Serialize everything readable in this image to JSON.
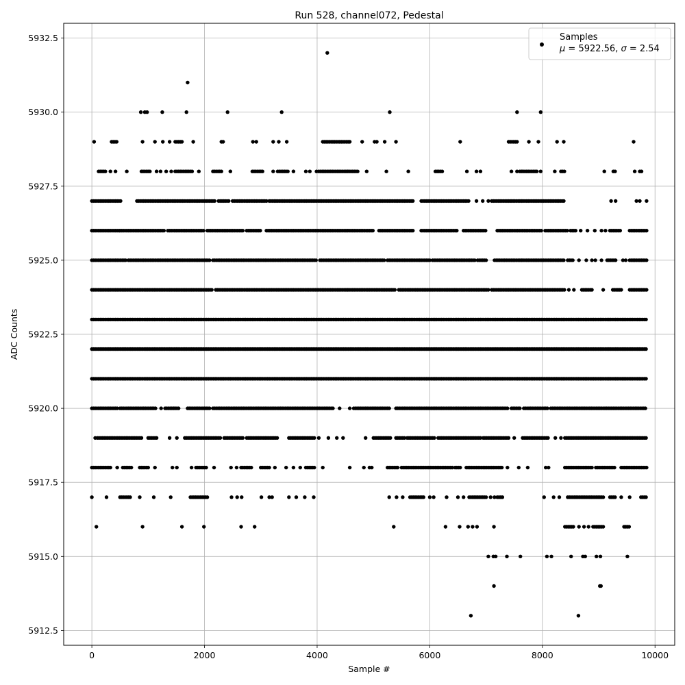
{
  "chart_data": {
    "type": "scatter",
    "title": "Run 528, channel072, Pedestal",
    "xlabel": "Sample #",
    "ylabel": "ADC Counts",
    "xlim": [
      -500,
      10350
    ],
    "ylim": [
      5912,
      5933
    ],
    "xticks": [
      0,
      2000,
      4000,
      6000,
      8000,
      10000
    ],
    "yticks": [
      5912.5,
      5915.0,
      5917.5,
      5920.0,
      5922.5,
      5925.0,
      5927.5,
      5930.0,
      5932.5
    ],
    "xtick_labels": [
      "0",
      "2000",
      "4000",
      "6000",
      "8000",
      "10000"
    ],
    "ytick_labels": [
      "5912.5",
      "5915.0",
      "5917.5",
      "5920.0",
      "5922.5",
      "5925.0",
      "5927.5",
      "5930.0",
      "5932.5"
    ],
    "grid": true,
    "legend": {
      "placement": "top-right",
      "series_label": "Samples",
      "mu_symbol": "μ",
      "mu_text": " = 5922.56, ",
      "sigma_symbol": "σ",
      "sigma_text": " = 2.54"
    },
    "series": [
      {
        "name": "Samples",
        "color": "#000000",
        "marker": "circle",
        "x_range": [
          0,
          9850
        ],
        "levels": [
          {
            "y": 5932,
            "ranges": [],
            "points": [
              4180
            ]
          },
          {
            "y": 5931,
            "ranges": [],
            "points": [
              1700
            ]
          },
          {
            "y": 5930,
            "ranges": [],
            "points": [
              870,
              940,
              980,
              1250,
              1680,
              2410,
              3370,
              5290,
              7550,
              7970
            ]
          },
          {
            "y": 5929,
            "ranges": [
              [
                350,
                450
              ],
              [
                1480,
                1620
              ],
              [
                4100,
                4600
              ],
              [
                7400,
                7560
              ]
            ],
            "points": [
              40,
              900,
              1120,
              1260,
              1380,
              1800,
              2300,
              2330,
              2860,
              2920,
              3220,
              3320,
              3460,
              4800,
              5020,
              5060,
              5200,
              5400,
              6540,
              7760,
              7930,
              8260,
              8380,
              9620
            ]
          },
          {
            "y": 5928,
            "ranges": [
              [
                120,
                250
              ],
              [
                880,
                1050
              ],
              [
                1480,
                1780
              ],
              [
                2150,
                2300
              ],
              [
                2850,
                3050
              ],
              [
                3300,
                3500
              ],
              [
                4030,
                4730
              ],
              [
                6100,
                6220
              ],
              [
                7600,
                7900
              ],
              [
                8330,
                8400
              ]
            ],
            "points": [
              330,
              420,
              620,
              1150,
              1220,
              1320,
              1410,
              1900,
              2460,
              3220,
              3580,
              3800,
              3870,
              3990,
              4880,
              5230,
              5620,
              6660,
              6830,
              6900,
              7450,
              7550,
              7970,
              8220,
              9100,
              9260,
              9290,
              9640,
              9730,
              9760
            ]
          },
          {
            "y": 5927,
            "ranges": [
              [
                0,
                520
              ],
              [
                800,
                2200
              ],
              [
                2250,
                2450
              ],
              [
                2500,
                3100
              ],
              [
                3150,
                5700
              ],
              [
                5850,
                6700
              ],
              [
                7100,
                7450
              ],
              [
                7450,
                8400
              ]
            ],
            "points": [
              6830,
              6940,
              7040,
              9220,
              9300,
              9670,
              9730,
              9850
            ]
          },
          {
            "y": 5926,
            "ranges": [
              [
                0,
                480
              ],
              [
                500,
                1300
              ],
              [
                1350,
                2000
              ],
              [
                2050,
                2700
              ],
              [
                2750,
                3000
              ],
              [
                3100,
                5000
              ],
              [
                5100,
                5700
              ],
              [
                5850,
                6500
              ],
              [
                6600,
                7000
              ],
              [
                7200,
                8000
              ],
              [
                8050,
                8450
              ],
              [
                8500,
                8600
              ],
              [
                9200,
                9400
              ],
              [
                9550,
                9850
              ]
            ],
            "points": [
              8680,
              8800,
              8930,
              9050,
              9120
            ]
          },
          {
            "y": 5925,
            "ranges": [
              [
                0,
                600
              ],
              [
                650,
                2100
              ],
              [
                2150,
                4000
              ],
              [
                4050,
                5200
              ],
              [
                5250,
                6000
              ],
              [
                6050,
                6800
              ],
              [
                6850,
                7000
              ],
              [
                7150,
                8400
              ],
              [
                8450,
                8550
              ],
              [
                9150,
                9300
              ],
              [
                9550,
                9850
              ]
            ],
            "points": [
              8650,
              8780,
              8880,
              8940,
              9050,
              9430,
              9480
            ]
          },
          {
            "y": 5924,
            "ranges": [
              [
                0,
                2150
              ],
              [
                2200,
                5400
              ],
              [
                5450,
                7050
              ],
              [
                7100,
                8400
              ],
              [
                8700,
                8900
              ],
              [
                9250,
                9400
              ],
              [
                9550,
                9850
              ]
            ],
            "points": [
              8470,
              8560,
              9080
            ]
          },
          {
            "y": 5923,
            "ranges": [
              [
                0,
                9850
              ]
            ],
            "points": []
          },
          {
            "y": 5922,
            "ranges": [
              [
                0,
                9850
              ]
            ],
            "points": []
          },
          {
            "y": 5921,
            "ranges": [
              [
                0,
                9850
              ]
            ],
            "points": []
          },
          {
            "y": 5920,
            "ranges": [
              [
                0,
                450
              ],
              [
                500,
                1150
              ],
              [
                1300,
                1550
              ],
              [
                1700,
                2100
              ],
              [
                2150,
                4300
              ],
              [
                4650,
                5300
              ],
              [
                5400,
                7400
              ],
              [
                7450,
                7600
              ],
              [
                7700,
                8100
              ],
              [
                8150,
                9850
              ]
            ],
            "points": [
              4400,
              4580,
              1230,
              7670
            ]
          },
          {
            "y": 5919,
            "ranges": [
              [
                100,
                900
              ],
              [
                1000,
                1150
              ],
              [
                1650,
                2300
              ],
              [
                2350,
                2700
              ],
              [
                2750,
                3300
              ],
              [
                3500,
                3950
              ],
              [
                5000,
                5300
              ],
              [
                5400,
                5550
              ],
              [
                5600,
                6100
              ],
              [
                6150,
                6900
              ],
              [
                6950,
                7400
              ],
              [
                7650,
                8100
              ],
              [
                8400,
                9850
              ]
            ],
            "points": [
              60,
              1380,
              1510,
              4030,
              4200,
              4350,
              4460,
              4860,
              7500,
              8230,
              8330
            ]
          },
          {
            "y": 5918,
            "ranges": [
              [
                0,
                350
              ],
              [
                550,
                700
              ],
              [
                850,
                1000
              ],
              [
                1850,
                2050
              ],
              [
                2650,
                2850
              ],
              [
                3000,
                3150
              ],
              [
                3800,
                3950
              ],
              [
                5250,
                5450
              ],
              [
                5500,
                6400
              ],
              [
                6450,
                6550
              ],
              [
                6650,
                7300
              ],
              [
                8400,
                8900
              ],
              [
                8950,
                9300
              ],
              [
                9400,
                9850
              ]
            ],
            "points": [
              450,
              1120,
              1430,
              1510,
              1770,
              2170,
              2470,
              2570,
              3250,
              3450,
              3580,
              3700,
              4100,
              4580,
              4830,
              4930,
              4970,
              7380,
              7580,
              7740,
              8060,
              8110
            ]
          },
          {
            "y": 5917,
            "ranges": [
              [
                500,
                700
              ],
              [
                1750,
                2050
              ],
              [
                5650,
                5900
              ],
              [
                6700,
                7000
              ],
              [
                7200,
                7300
              ],
              [
                8450,
                9100
              ],
              [
                9200,
                9300
              ],
              [
                9750,
                9850
              ]
            ],
            "points": [
              0,
              260,
              850,
              1100,
              1400,
              2480,
              2580,
              2660,
              3010,
              3150,
              3200,
              3500,
              3630,
              3780,
              3940,
              5280,
              5410,
              5520,
              6000,
              6070,
              6300,
              6500,
              6600,
              7080,
              7150,
              8030,
              8200,
              8300,
              9400,
              9550
            ]
          },
          {
            "y": 5916,
            "ranges": [
              [
                8400,
                8550
              ],
              [
                8900,
                9100
              ],
              [
                9450,
                9550
              ]
            ],
            "points": [
              80,
              900,
              1600,
              1990,
              2650,
              2890,
              5360,
              6280,
              6530,
              6680,
              6760,
              6840,
              7140,
              8650,
              8740,
              8820
            ]
          },
          {
            "y": 5915,
            "ranges": [],
            "points": [
              7040,
              7130,
              7170,
              7370,
              7610,
              8080,
              8160,
              8510,
              8720,
              8760,
              8960,
              9030,
              9510
            ]
          },
          {
            "y": 5914,
            "ranges": [],
            "points": [
              7140,
              9020,
              9040
            ]
          },
          {
            "y": 5913,
            "ranges": [],
            "points": [
              6730,
              8640
            ]
          }
        ]
      }
    ]
  }
}
